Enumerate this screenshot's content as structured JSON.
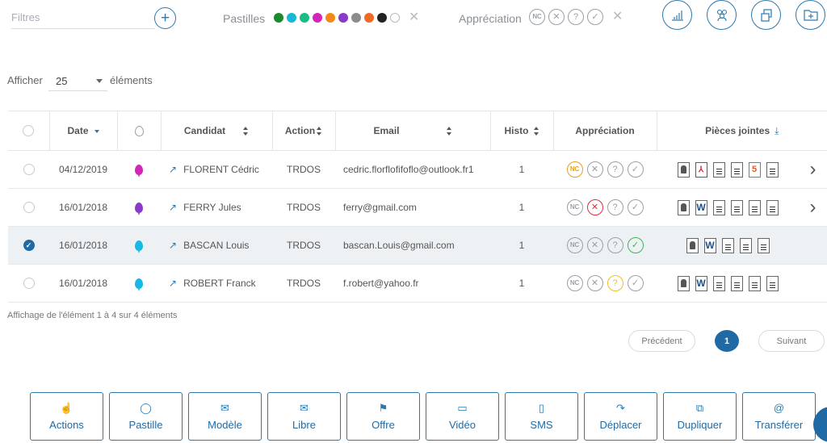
{
  "filters": {
    "placeholder": "Filtres",
    "pastilles_label": "Pastilles",
    "pastille_colors": [
      "#1a8a2a",
      "#16b8d6",
      "#1abc86",
      "#d325b8",
      "#f28a1a",
      "#8a3ac9",
      "#8c8c8c",
      "#f06a24",
      "#222222"
    ],
    "appreciation_label": "Appréciation",
    "appreciation_icons": [
      "nc-icon",
      "x-icon",
      "question-icon",
      "check-icon"
    ],
    "appreciation_nc": "NC",
    "top_tools": [
      "stats-icon",
      "group-icon",
      "copy-icon",
      "folder-add-icon"
    ]
  },
  "length": {
    "prefix": "Afficher",
    "value": "25",
    "suffix": "éléments"
  },
  "table": {
    "columns": {
      "date": "Date",
      "candidat": "Candidat",
      "action": "Action",
      "email": "Email",
      "histo": "Histo",
      "appreciation": "Appréciation",
      "pieces": "Pièces jointes"
    },
    "rows": [
      {
        "selected": false,
        "date": "04/12/2019",
        "pastille": "#d325b8",
        "candidat": "FLORENT Cédric",
        "action": "TRDOS",
        "email": "cedric.florflofifoflo@outlook.fr1",
        "histo": "1",
        "appreciation": "NC",
        "files": [
          "photo",
          "pdf",
          "doc",
          "doc",
          "html5",
          "doc"
        ],
        "more": true
      },
      {
        "selected": false,
        "date": "16/01/2018",
        "pastille": "#8a3ac9",
        "candidat": "FERRY Jules",
        "action": "TRDOS",
        "email": "ferry@gmail.com",
        "histo": "1",
        "appreciation": "X",
        "files": [
          "photo",
          "word",
          "doc",
          "doc",
          "doc",
          "doc"
        ],
        "more": true
      },
      {
        "selected": true,
        "date": "16/01/2018",
        "pastille": "#16b8e6",
        "candidat": "BASCAN Louis",
        "action": "TRDOS",
        "email": "bascan.Louis@gmail.com",
        "histo": "1",
        "appreciation": "CHECK",
        "files": [
          "photo",
          "word",
          "doc",
          "doc",
          "doc"
        ],
        "more": false
      },
      {
        "selected": false,
        "date": "16/01/2018",
        "pastille": "#16b8e6",
        "candidat": "ROBERT Franck",
        "action": "TRDOS",
        "email": "f.robert@yahoo.fr",
        "histo": "1",
        "appreciation": "?",
        "files": [
          "photo",
          "word",
          "doc",
          "doc",
          "doc",
          "doc"
        ],
        "more": false
      }
    ]
  },
  "footer": {
    "info": "Affichage de l'élément 1 à 4 sur 4 éléments",
    "prev": "Précédent",
    "page": "1",
    "next": "Suivant"
  },
  "actions": [
    {
      "label": "Actions",
      "icon": "pointer-icon",
      "glyph": "☝"
    },
    {
      "label": "Pastille",
      "icon": "pin-icon",
      "glyph": "◯"
    },
    {
      "label": "Modèle",
      "icon": "mail-icon",
      "glyph": "✉"
    },
    {
      "label": "Libre",
      "icon": "mail-icon",
      "glyph": "✉"
    },
    {
      "label": "Offre",
      "icon": "megaphone-icon",
      "glyph": "⚑"
    },
    {
      "label": "Vidéo",
      "icon": "video-icon",
      "glyph": "▭"
    },
    {
      "label": "SMS",
      "icon": "phone-icon",
      "glyph": "▯"
    },
    {
      "label": "Déplacer",
      "icon": "share-icon",
      "glyph": "↷"
    },
    {
      "label": "Dupliquer",
      "icon": "copy-icon",
      "glyph": "⧉"
    },
    {
      "label": "Transférer",
      "icon": "at-icon",
      "glyph": "@"
    }
  ]
}
